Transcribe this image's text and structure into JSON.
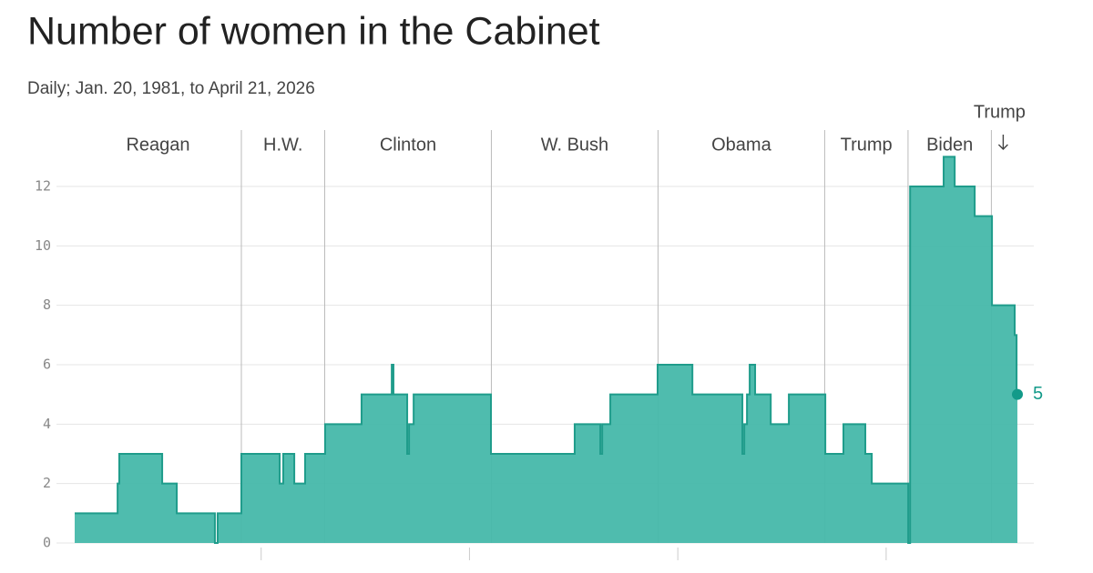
{
  "chart_data": {
    "type": "step-area",
    "title": "Number of women in the Cabinet",
    "subtitle": "Daily; Jan. 20, 1981, to April 21, 2026",
    "x": [
      1981.05,
      1983.11,
      1983.19,
      1985.25,
      1985.95,
      1987.78,
      1987.91,
      1989.05,
      1990.89,
      1991.06,
      1991.59,
      1992.11,
      1993.07,
      1994.82,
      1996.27,
      1996.35,
      1997.01,
      1997.1,
      1997.32,
      2001.03,
      2005.05,
      2006.28,
      2006.37,
      2006.76,
      2009.03,
      2010.7,
      2013.1,
      2013.19,
      2013.32,
      2013.45,
      2013.71,
      2014.46,
      2015.33,
      2017.08,
      2017.95,
      2019.0,
      2019.31,
      2021.06,
      2021.15,
      2022.76,
      2023.29,
      2024.25,
      2025.08,
      2026.17,
      2026.26,
      2026.3
    ],
    "series": [
      {
        "color": "#46b8aa",
        "values": [
          1,
          2,
          3,
          2,
          1,
          0,
          1,
          3,
          2,
          3,
          2,
          3,
          4,
          5,
          6,
          5,
          3,
          4,
          5,
          3,
          4,
          3,
          4,
          5,
          6,
          5,
          3,
          4,
          5,
          6,
          5,
          4,
          5,
          3,
          4,
          3,
          2,
          0,
          12,
          13,
          12,
          11,
          8,
          7,
          5,
          5
        ]
      }
    ],
    "xlim": [
      1981.05,
      2026.3
    ],
    "ylim": [
      0,
      12
    ],
    "yticks": [
      0,
      2,
      4,
      6,
      8,
      10,
      12
    ],
    "xticks": [
      1990,
      2000,
      2010,
      2020
    ],
    "grid": true,
    "annotations": [
      {
        "label": "Reagan",
        "x": 1981.05
      },
      {
        "label": "H.W.",
        "x": 1989.05
      },
      {
        "label": "Clinton",
        "x": 1993.05
      },
      {
        "label": "W. Bush",
        "x": 2001.05
      },
      {
        "label": "Obama",
        "x": 2009.05
      },
      {
        "label": "Trump",
        "x": 2017.05
      },
      {
        "label": "Biden",
        "x": 2021.05
      },
      {
        "label": "Trump",
        "x": 2025.05
      }
    ]
  }
}
